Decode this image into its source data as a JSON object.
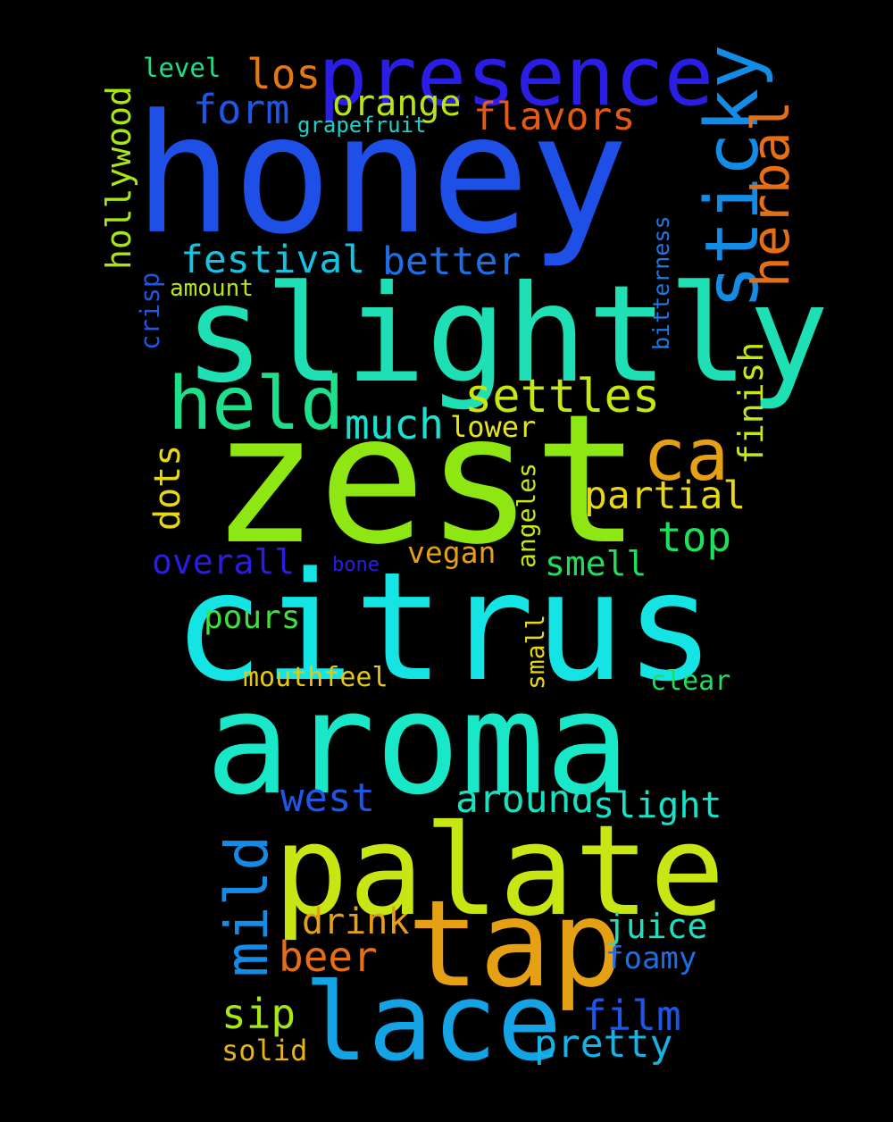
{
  "words": {
    "honey": {
      "text": "honey",
      "color": "#1e4fe6"
    },
    "zest": {
      "text": "zest",
      "color": "#8ee612"
    },
    "citrus": {
      "text": "citrus",
      "color": "#14e4e4"
    },
    "aroma": {
      "text": "aroma",
      "color": "#18e8c8"
    },
    "slightly": {
      "text": "slightly",
      "color": "#1ee0b4"
    },
    "palate": {
      "text": "palate",
      "color": "#c8e614"
    },
    "tap": {
      "text": "tap",
      "color": "#e6a014"
    },
    "lace": {
      "text": "lace",
      "color": "#14a4e6"
    },
    "presence": {
      "text": "presence",
      "color": "#2a1ee6"
    },
    "sticky": {
      "text": "sticky",
      "color": "#148ce6"
    },
    "herbal": {
      "text": "herbal",
      "color": "#e66e14"
    },
    "held": {
      "text": "held",
      "color": "#1ee08a"
    },
    "mild": {
      "text": "mild",
      "color": "#148ce6"
    },
    "ca": {
      "text": "ca",
      "color": "#e6a014"
    },
    "settles": {
      "text": "settles",
      "color": "#c8e614"
    },
    "festival": {
      "text": "festival",
      "color": "#14c4e0"
    },
    "better": {
      "text": "better",
      "color": "#1e6ee6"
    },
    "form": {
      "text": "form",
      "color": "#1e56e6"
    },
    "flavors": {
      "text": "flavors",
      "color": "#e65a14"
    },
    "los": {
      "text": "los",
      "color": "#e67814"
    },
    "orange": {
      "text": "orange",
      "color": "#b8e614"
    },
    "hollywood": {
      "text": "hollywood",
      "color": "#a8e614"
    },
    "level": {
      "text": "level",
      "color": "#1ee08a"
    },
    "grapefruit": {
      "text": "grapefruit",
      "color": "#1ed0c8"
    },
    "amount": {
      "text": "amount",
      "color": "#b8e614"
    },
    "crisp": {
      "text": "crisp",
      "color": "#1e56e6"
    },
    "bitterness": {
      "text": "bitterness",
      "color": "#1e78e6"
    },
    "much": {
      "text": "much",
      "color": "#1ee0d0"
    },
    "lower": {
      "text": "lower",
      "color": "#e6e614"
    },
    "finish": {
      "text": "finish",
      "color": "#c8e614"
    },
    "partial": {
      "text": "partial",
      "color": "#e6d814"
    },
    "top": {
      "text": "top",
      "color": "#1ee05a"
    },
    "dots": {
      "text": "dots",
      "color": "#e6d814"
    },
    "overall": {
      "text": "overall",
      "color": "#2a1ee6"
    },
    "bone": {
      "text": "bone",
      "color": "#2a1ee6"
    },
    "vegan": {
      "text": "vegan",
      "color": "#e6a014"
    },
    "angeles": {
      "text": "angeles",
      "color": "#c8e614"
    },
    "smell": {
      "text": "smell",
      "color": "#1ee05a"
    },
    "pours": {
      "text": "pours",
      "color": "#3ee03a"
    },
    "mouthfeel": {
      "text": "mouthfeel",
      "color": "#e6c814"
    },
    "small": {
      "text": "small",
      "color": "#e6d814"
    },
    "clear": {
      "text": "clear",
      "color": "#1ee05a"
    },
    "west": {
      "text": "west",
      "color": "#1e56e6"
    },
    "around": {
      "text": "around",
      "color": "#1ee0c0"
    },
    "slight": {
      "text": "slight",
      "color": "#14e4c8"
    },
    "drink": {
      "text": "drink",
      "color": "#e6a014"
    },
    "beer": {
      "text": "beer",
      "color": "#e66e14"
    },
    "juice": {
      "text": "juice",
      "color": "#1ee0c0"
    },
    "foamy": {
      "text": "foamy",
      "color": "#1e6ee6"
    },
    "sip": {
      "text": "sip",
      "color": "#a8e614"
    },
    "film": {
      "text": "film",
      "color": "#1e56e6"
    },
    "pretty": {
      "text": "pretty",
      "color": "#14b4e6"
    },
    "solid": {
      "text": "solid",
      "color": "#e6b414"
    }
  }
}
